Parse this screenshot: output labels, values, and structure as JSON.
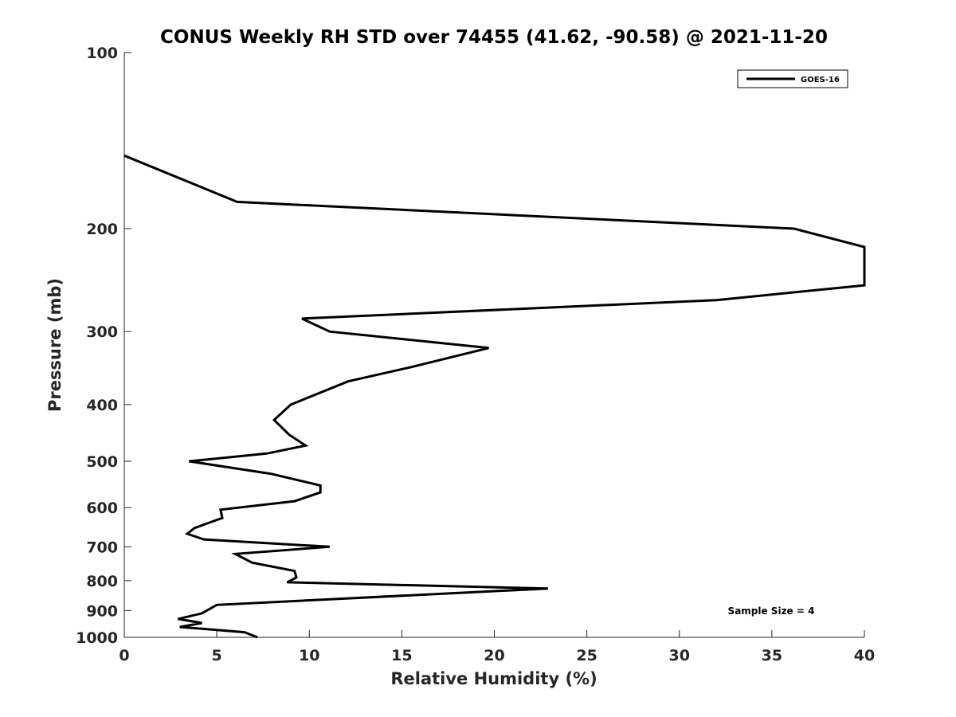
{
  "chart_data": {
    "type": "line",
    "title": "CONUS Weekly RH STD over 74455 (41.62, -90.58) @ 2021-11-20",
    "xlabel": "Relative Humidity (%)",
    "ylabel": "Pressure (mb)",
    "xlim": [
      0,
      40
    ],
    "ylim": [
      100,
      1000
    ],
    "y_scale": "log",
    "y_reversed": true,
    "x_ticks": [
      "0",
      "5",
      "10",
      "15",
      "20",
      "25",
      "30",
      "35",
      "40"
    ],
    "y_ticks": [
      "100",
      "200",
      "300",
      "400",
      "500",
      "600",
      "700",
      "800",
      "900",
      "1000"
    ],
    "grid": false,
    "legend_position": "top-right",
    "series": [
      {
        "name": "GOES-16",
        "color": "#000000",
        "x": [
          0.0,
          6.1,
          36.2,
          40.0,
          40.0,
          32.0,
          9.6,
          11.1,
          19.7,
          15.5,
          12.1,
          9.0,
          8.1,
          8.9,
          9.8,
          7.7,
          3.5,
          7.9,
          10.6,
          10.6,
          9.2,
          5.2,
          5.3,
          3.8,
          3.4,
          4.3,
          11.1,
          6.0,
          6.9,
          9.2,
          9.3,
          8.8,
          22.9,
          5.0,
          4.2,
          2.9,
          4.2,
          3.0,
          6.5,
          7.2
        ],
        "y": [
          150,
          180,
          200,
          215,
          250,
          265,
          285,
          300,
          320,
          345,
          365,
          400,
          425,
          450,
          470,
          485,
          500,
          525,
          550,
          565,
          585,
          605,
          625,
          650,
          665,
          680,
          700,
          720,
          745,
          770,
          790,
          805,
          825,
          880,
          910,
          930,
          945,
          960,
          980,
          1000
        ]
      }
    ],
    "annotations": [
      "Sample Size = 4"
    ]
  }
}
